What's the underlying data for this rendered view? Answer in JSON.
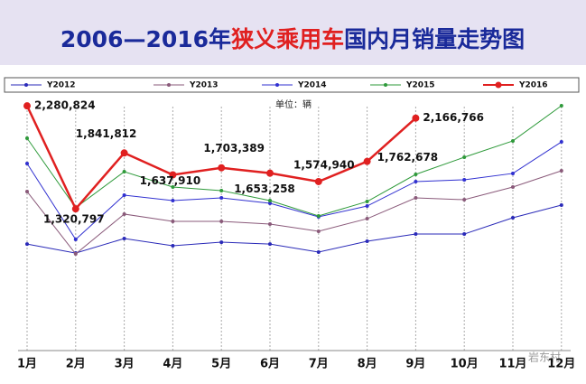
{
  "chart_data": {
    "type": "line",
    "title": [
      "2006—2016年",
      "狭义乘用车",
      "国内月销量走势图"
    ],
    "unit_label": "单位：辆",
    "watermark": "岩东村",
    "categories": [
      "1月",
      "2月",
      "3月",
      "4月",
      "5月",
      "6月",
      "7月",
      "8月",
      "9月",
      "10月",
      "11月",
      "12月"
    ],
    "ylim": [
      0,
      2400000
    ],
    "series": [
      {
        "name": "Y2012",
        "color": "#2a2ab8",
        "values": [
          993000,
          909000,
          1044000,
          977000,
          1010000,
          993000,
          918000,
          1019000,
          1086000,
          1086000,
          1238000,
          1356000
        ]
      },
      {
        "name": "Y2013",
        "color": "#8a5a7a",
        "values": [
          1482000,
          901000,
          1272000,
          1204000,
          1204000,
          1179000,
          1112000,
          1229000,
          1423000,
          1406000,
          1524000,
          1676000
        ]
      },
      {
        "name": "Y2014",
        "color": "#3030d0",
        "values": [
          1743000,
          1036000,
          1448000,
          1398000,
          1423000,
          1373000,
          1246000,
          1347000,
          1575000,
          1592000,
          1651000,
          1945000
        ]
      },
      {
        "name": "Y2015",
        "color": "#2e9a3a",
        "values": [
          1979000,
          1331000,
          1667000,
          1524000,
          1491000,
          1398000,
          1255000,
          1389000,
          1642000,
          1802000,
          1954000,
          2282000
        ]
      },
      {
        "name": "Y2016",
        "color": "#e02020",
        "values": [
          2280824,
          1320797,
          1841812,
          1637910,
          1703389,
          1653258,
          1574940,
          1762678,
          2166766,
          null,
          null,
          null
        ],
        "value_labels": [
          "2,280,824",
          "1,320,797",
          "1,841,812",
          "1,637,910",
          "1,703,389",
          "1,653,258",
          "1,574,940",
          "1,762,678",
          "2,166,766",
          null,
          null,
          null
        ]
      }
    ]
  }
}
